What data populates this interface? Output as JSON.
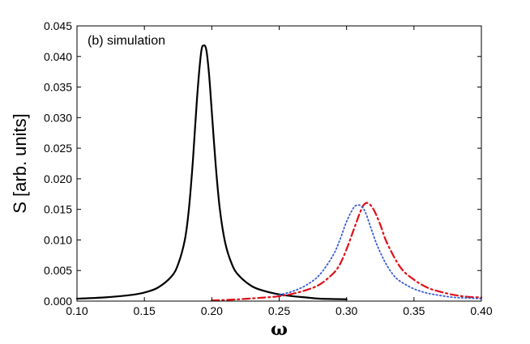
{
  "chart_data": {
    "type": "line",
    "title": "",
    "annotation": "(b) simulation",
    "xlabel": "ω",
    "ylabel": "S [arb. units]",
    "xlim": [
      0.1,
      0.4
    ],
    "ylim": [
      0.0,
      0.045
    ],
    "xticks": [
      "0.10",
      "0.15",
      "0.20",
      "0.25",
      "0.30",
      "0.35",
      "0.40"
    ],
    "yticks": [
      "0.000",
      "0.005",
      "0.010",
      "0.015",
      "0.020",
      "0.025",
      "0.030",
      "0.035",
      "0.040",
      "0.045"
    ],
    "grid": false,
    "series": [
      {
        "style": "solid",
        "color": "#000000",
        "x": [
          0.1,
          0.12,
          0.14,
          0.15,
          0.16,
          0.17,
          0.175,
          0.18,
          0.183,
          0.186,
          0.189,
          0.192,
          0.194,
          0.196,
          0.198,
          0.2,
          0.203,
          0.206,
          0.21,
          0.215,
          0.22,
          0.23,
          0.24,
          0.25,
          0.26,
          0.27,
          0.28,
          0.3
        ],
        "y": [
          0.0004,
          0.0006,
          0.001,
          0.0014,
          0.0022,
          0.004,
          0.006,
          0.01,
          0.015,
          0.023,
          0.033,
          0.0405,
          0.0418,
          0.041,
          0.037,
          0.031,
          0.022,
          0.015,
          0.0095,
          0.006,
          0.0042,
          0.0024,
          0.0016,
          0.0011,
          0.0008,
          0.0006,
          0.0004,
          0.0003
        ]
      },
      {
        "style": "dashdot",
        "color": "#e0101a",
        "x": [
          0.2,
          0.22,
          0.24,
          0.25,
          0.26,
          0.27,
          0.28,
          0.29,
          0.295,
          0.3,
          0.305,
          0.31,
          0.313,
          0.316,
          0.32,
          0.325,
          0.33,
          0.34,
          0.35,
          0.36,
          0.37,
          0.38,
          0.39,
          0.4
        ],
        "y": [
          0.0001,
          0.0003,
          0.0006,
          0.0008,
          0.0012,
          0.0018,
          0.0027,
          0.0045,
          0.006,
          0.0085,
          0.0115,
          0.0145,
          0.0158,
          0.016,
          0.015,
          0.0125,
          0.0095,
          0.0055,
          0.0035,
          0.0022,
          0.0015,
          0.001,
          0.0007,
          0.0006
        ]
      },
      {
        "style": "dotted",
        "color": "#3a5bd9",
        "x": [
          0.25,
          0.26,
          0.27,
          0.28,
          0.29,
          0.295,
          0.3,
          0.305,
          0.308,
          0.311,
          0.314,
          0.318,
          0.322,
          0.326,
          0.33,
          0.335,
          0.34,
          0.35,
          0.36,
          0.37,
          0.38,
          0.39,
          0.4
        ],
        "y": [
          0.001,
          0.0016,
          0.0026,
          0.0043,
          0.0075,
          0.01,
          0.013,
          0.0152,
          0.0157,
          0.0155,
          0.0145,
          0.012,
          0.0095,
          0.0075,
          0.0058,
          0.0042,
          0.0032,
          0.002,
          0.0013,
          0.0009,
          0.0006,
          0.0005,
          0.0004
        ]
      }
    ]
  }
}
